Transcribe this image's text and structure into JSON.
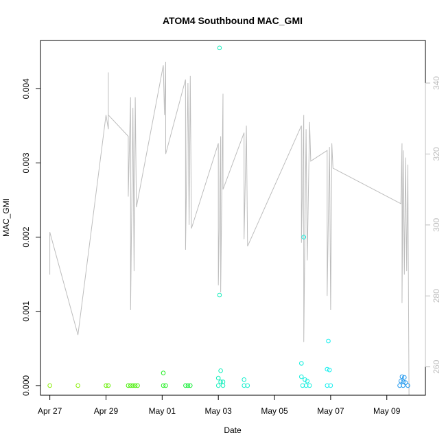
{
  "chart_data": {
    "type": "scatter",
    "title": "ATOM4 Southbound MAC_GMI",
    "xlabel": "Date",
    "ylabel": "MAC_GMI",
    "xlim": [
      "2017-04-26T16:00",
      "2017-05-10T09:00"
    ],
    "ylim": [
      -0.00013,
      0.00465
    ],
    "y2lim": [
      252,
      352
    ],
    "x_ticks": [
      {
        "date": "2017-04-27",
        "label": "Apr 27"
      },
      {
        "date": "2017-04-29",
        "label": "Apr 29"
      },
      {
        "date": "2017-05-01",
        "label": "May 01"
      },
      {
        "date": "2017-05-03",
        "label": "May 03"
      },
      {
        "date": "2017-05-05",
        "label": "May 05"
      },
      {
        "date": "2017-05-07",
        "label": "May 07"
      },
      {
        "date": "2017-05-09",
        "label": "May 09"
      }
    ],
    "y_ticks": [
      {
        "value": 0.0,
        "label": "0.000"
      },
      {
        "value": 0.001,
        "label": "0.001"
      },
      {
        "value": 0.002,
        "label": "0.002"
      },
      {
        "value": 0.003,
        "label": "0.003"
      },
      {
        "value": 0.004,
        "label": "0.004"
      }
    ],
    "y2_ticks": [
      {
        "value": 260,
        "label": "260"
      },
      {
        "value": 280,
        "label": "280"
      },
      {
        "value": 300,
        "label": "300"
      },
      {
        "value": 320,
        "label": "320"
      },
      {
        "value": 340,
        "label": "340"
      }
    ],
    "grid": false,
    "scatter_series": {
      "marker": "open-circle",
      "points": [
        {
          "x": "2017-04-27T00:00",
          "y": 0.0,
          "color": "#88ee00"
        },
        {
          "x": "2017-04-28T00:00",
          "y": 0.0,
          "color": "#88ee00"
        },
        {
          "x": "2017-04-29T00:00",
          "y": 0.0,
          "color": "#66ee00"
        },
        {
          "x": "2017-04-29T02:00",
          "y": 0.0,
          "color": "#66ee00"
        },
        {
          "x": "2017-04-29T19:00",
          "y": 0.0,
          "color": "#44ee00"
        },
        {
          "x": "2017-04-29T21:00",
          "y": 0.0,
          "color": "#44ee00"
        },
        {
          "x": "2017-04-29T23:00",
          "y": 0.0,
          "color": "#44ee00"
        },
        {
          "x": "2017-04-30T01:00",
          "y": 0.0,
          "color": "#44ee00"
        },
        {
          "x": "2017-04-30T03:00",
          "y": 0.0,
          "color": "#44ee00"
        },
        {
          "x": "2017-05-01T01:00",
          "y": 0.00017,
          "color": "#22ee22"
        },
        {
          "x": "2017-05-01T01:00",
          "y": 0.0,
          "color": "#22ee22"
        },
        {
          "x": "2017-05-01T03:00",
          "y": 0.0,
          "color": "#22ee22"
        },
        {
          "x": "2017-05-01T20:00",
          "y": 0.0,
          "color": "#11ee33"
        },
        {
          "x": "2017-05-01T22:00",
          "y": 0.0,
          "color": "#11ee33"
        },
        {
          "x": "2017-05-02T00:00",
          "y": 0.0,
          "color": "#11ee33"
        },
        {
          "x": "2017-05-03T01:00",
          "y": 0.00455,
          "color": "#11eebb"
        },
        {
          "x": "2017-05-03T01:00",
          "y": 0.00122,
          "color": "#11eebb"
        },
        {
          "x": "2017-05-03T02:00",
          "y": 0.0002,
          "color": "#11eebb"
        },
        {
          "x": "2017-05-03T00:00",
          "y": 0.0001,
          "color": "#11eebb"
        },
        {
          "x": "2017-05-03T02:00",
          "y": 5e-05,
          "color": "#11eebb"
        },
        {
          "x": "2017-05-03T04:00",
          "y": 5e-05,
          "color": "#11eebb"
        },
        {
          "x": "2017-05-03T00:00",
          "y": 0.0,
          "color": "#11eebb"
        },
        {
          "x": "2017-05-03T04:00",
          "y": 0.0,
          "color": "#11eebb"
        },
        {
          "x": "2017-05-03T22:00",
          "y": 8e-05,
          "color": "#11eecc"
        },
        {
          "x": "2017-05-03T22:00",
          "y": 0.0,
          "color": "#11eecc"
        },
        {
          "x": "2017-05-04T01:00",
          "y": 0.0,
          "color": "#11eecc"
        },
        {
          "x": "2017-05-06T01:00",
          "y": 0.002,
          "color": "#11eedd"
        },
        {
          "x": "2017-05-05T23:00",
          "y": 0.0003,
          "color": "#11eedd"
        },
        {
          "x": "2017-05-05T23:00",
          "y": 0.00012,
          "color": "#11eedd"
        },
        {
          "x": "2017-05-06T02:00",
          "y": 8e-05,
          "color": "#11eedd"
        },
        {
          "x": "2017-05-06T04:00",
          "y": 6e-05,
          "color": "#11eedd"
        },
        {
          "x": "2017-05-06T00:00",
          "y": 0.0,
          "color": "#11eedd"
        },
        {
          "x": "2017-05-06T03:00",
          "y": 0.0,
          "color": "#11eedd"
        },
        {
          "x": "2017-05-06T06:00",
          "y": 0.0,
          "color": "#11eedd"
        },
        {
          "x": "2017-05-06T22:00",
          "y": 0.0006,
          "color": "#11eeee"
        },
        {
          "x": "2017-05-06T21:00",
          "y": 0.00022,
          "color": "#11eeee"
        },
        {
          "x": "2017-05-06T23:00",
          "y": 0.00021,
          "color": "#11eeee"
        },
        {
          "x": "2017-05-06T21:00",
          "y": 0.0,
          "color": "#11eeee"
        },
        {
          "x": "2017-05-07T00:00",
          "y": 0.0,
          "color": "#11eeee"
        },
        {
          "x": "2017-05-09T13:00",
          "y": 0.00012,
          "color": "#2299ee"
        },
        {
          "x": "2017-05-09T15:00",
          "y": 0.00011,
          "color": "#2299ee"
        },
        {
          "x": "2017-05-09T12:00",
          "y": 6e-05,
          "color": "#2299ee"
        },
        {
          "x": "2017-05-09T14:00",
          "y": 5e-05,
          "color": "#2299ee"
        },
        {
          "x": "2017-05-09T16:00",
          "y": 4e-05,
          "color": "#2299ee"
        },
        {
          "x": "2017-05-09T11:00",
          "y": 0.0,
          "color": "#2299ee"
        },
        {
          "x": "2017-05-09T14:00",
          "y": 0.0,
          "color": "#2299ee"
        },
        {
          "x": "2017-05-09T18:00",
          "y": 0.0,
          "color": "#2299ee"
        }
      ]
    },
    "line_series": {
      "axis": "right",
      "color": "#bdbdbd",
      "points": [
        {
          "x": "2017-04-27T00:00",
          "y": 286
        },
        {
          "x": "2017-04-27T00:00",
          "y": 298
        },
        {
          "x": "2017-04-28T00:00",
          "y": 269
        },
        {
          "x": "2017-04-29T00:00",
          "y": 331
        },
        {
          "x": "2017-04-29T02:00",
          "y": 327
        },
        {
          "x": "2017-04-29T02:00",
          "y": 343
        },
        {
          "x": "2017-04-29T02:00",
          "y": 331
        },
        {
          "x": "2017-04-29T19:00",
          "y": 325
        },
        {
          "x": "2017-04-29T19:00",
          "y": 308
        },
        {
          "x": "2017-04-29T21:00",
          "y": 336
        },
        {
          "x": "2017-04-29T21:00",
          "y": 276
        },
        {
          "x": "2017-04-29T23:00",
          "y": 333
        },
        {
          "x": "2017-04-30T00:00",
          "y": 287
        },
        {
          "x": "2017-04-30T01:00",
          "y": 336
        },
        {
          "x": "2017-04-30T02:00",
          "y": 305
        },
        {
          "x": "2017-05-01T01:00",
          "y": 345
        },
        {
          "x": "2017-05-01T02:00",
          "y": 331
        },
        {
          "x": "2017-05-01T03:00",
          "y": 346
        },
        {
          "x": "2017-05-01T03:00",
          "y": 320
        },
        {
          "x": "2017-05-01T20:00",
          "y": 341
        },
        {
          "x": "2017-05-01T20:00",
          "y": 293
        },
        {
          "x": "2017-05-01T22:00",
          "y": 340
        },
        {
          "x": "2017-05-01T23:00",
          "y": 300
        },
        {
          "x": "2017-05-02T00:00",
          "y": 342
        },
        {
          "x": "2017-05-02T01:00",
          "y": 299
        },
        {
          "x": "2017-05-03T00:00",
          "y": 323
        },
        {
          "x": "2017-05-03T00:00",
          "y": 283
        },
        {
          "x": "2017-05-03T02:00",
          "y": 325
        },
        {
          "x": "2017-05-03T02:00",
          "y": 281
        },
        {
          "x": "2017-05-03T04:00",
          "y": 337
        },
        {
          "x": "2017-05-03T04:00",
          "y": 310
        },
        {
          "x": "2017-05-03T22:00",
          "y": 326
        },
        {
          "x": "2017-05-03T22:00",
          "y": 296
        },
        {
          "x": "2017-05-04T00:00",
          "y": 328
        },
        {
          "x": "2017-05-04T01:00",
          "y": 294
        },
        {
          "x": "2017-05-05T23:00",
          "y": 328
        },
        {
          "x": "2017-05-05T23:00",
          "y": 295
        },
        {
          "x": "2017-05-06T01:00",
          "y": 331
        },
        {
          "x": "2017-05-06T01:00",
          "y": 267
        },
        {
          "x": "2017-05-06T03:00",
          "y": 327
        },
        {
          "x": "2017-05-06T04:00",
          "y": 290
        },
        {
          "x": "2017-05-06T06:00",
          "y": 329
        },
        {
          "x": "2017-05-06T07:00",
          "y": 318
        },
        {
          "x": "2017-05-06T21:00",
          "y": 321
        },
        {
          "x": "2017-05-06T21:00",
          "y": 280
        },
        {
          "x": "2017-05-06T23:00",
          "y": 322
        },
        {
          "x": "2017-05-07T00:00",
          "y": 276
        },
        {
          "x": "2017-05-07T01:00",
          "y": 323
        },
        {
          "x": "2017-05-07T02:00",
          "y": 316
        },
        {
          "x": "2017-05-09T12:00",
          "y": 306
        },
        {
          "x": "2017-05-09T13:00",
          "y": 323
        },
        {
          "x": "2017-05-09T13:00",
          "y": 278
        },
        {
          "x": "2017-05-09T14:00",
          "y": 321
        },
        {
          "x": "2017-05-09T15:00",
          "y": 286
        },
        {
          "x": "2017-05-09T16:00",
          "y": 319
        },
        {
          "x": "2017-05-09T17:00",
          "y": 287
        },
        {
          "x": "2017-05-09T18:00",
          "y": 317
        },
        {
          "x": "2017-05-09T19:00",
          "y": 252
        }
      ]
    }
  }
}
